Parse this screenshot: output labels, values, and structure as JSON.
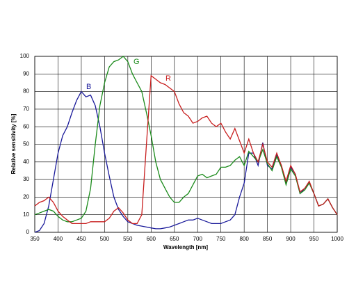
{
  "chart_data": {
    "type": "line",
    "x_label": "Wavelength [nm]",
    "y_label": "Relative sensitivity [%]",
    "x": [
      350,
      360,
      370,
      380,
      390,
      400,
      410,
      420,
      430,
      440,
      450,
      460,
      470,
      480,
      490,
      500,
      510,
      520,
      530,
      540,
      550,
      560,
      570,
      580,
      590,
      600,
      610,
      620,
      630,
      640,
      650,
      660,
      670,
      680,
      690,
      700,
      710,
      720,
      730,
      740,
      750,
      760,
      770,
      780,
      790,
      800,
      810,
      820,
      830,
      840,
      850,
      860,
      870,
      880,
      890,
      900,
      910,
      920,
      930,
      940,
      950,
      960,
      970,
      980,
      990,
      1000
    ],
    "series": [
      {
        "name": "B",
        "color": "#1a1a9a",
        "values": [
          0,
          1,
          5,
          15,
          30,
          45,
          55,
          60,
          68,
          75,
          80,
          77,
          78,
          72,
          60,
          45,
          32,
          20,
          13,
          9,
          6,
          5,
          4,
          3.5,
          3,
          2.5,
          2,
          2,
          2.5,
          3,
          4,
          5,
          6,
          7,
          7,
          8,
          7,
          6,
          5,
          5,
          5,
          6,
          7,
          10,
          20,
          28,
          45,
          45,
          38,
          51,
          38,
          36,
          44,
          38,
          28,
          37,
          33,
          22,
          25,
          28,
          22,
          15,
          16,
          19,
          14,
          10
        ]
      },
      {
        "name": "G",
        "color": "#1a8a1a",
        "values": [
          10,
          11,
          12,
          13,
          12,
          9,
          7,
          6,
          6,
          7,
          8,
          12,
          25,
          50,
          72,
          85,
          94,
          97,
          98,
          100,
          97,
          90,
          85,
          80,
          68,
          55,
          40,
          30,
          25,
          20,
          17,
          17,
          20,
          22,
          27,
          32,
          33,
          31,
          32,
          33,
          37,
          37,
          38,
          41,
          43,
          38,
          46,
          43,
          40,
          47,
          39,
          35,
          43,
          37,
          27,
          36,
          32,
          22,
          24,
          28,
          22,
          15,
          16,
          19,
          14,
          10
        ]
      },
      {
        "name": "R",
        "color": "#c81e1e",
        "values": [
          15,
          17,
          18,
          20,
          17,
          12,
          9,
          7,
          5,
          5,
          5,
          5,
          6,
          6,
          6,
          6,
          8,
          12,
          14,
          11,
          7,
          5,
          5,
          10,
          50,
          89,
          87,
          85,
          84,
          82,
          80,
          73,
          68,
          66,
          62,
          63,
          65,
          66,
          62,
          60,
          62,
          57,
          53,
          59,
          52,
          45,
          53,
          45,
          40,
          50,
          40,
          37,
          45,
          38,
          29,
          38,
          33,
          23,
          25,
          29,
          22,
          15,
          16,
          19,
          14,
          10
        ]
      }
    ],
    "xlim": [
      350,
      1000
    ],
    "xticks": [
      350,
      400,
      450,
      500,
      550,
      600,
      650,
      700,
      750,
      800,
      850,
      900,
      950,
      1000
    ],
    "ylim": [
      0,
      100
    ],
    "yticks": [
      0,
      10,
      20,
      30,
      40,
      50,
      60,
      70,
      80,
      90,
      100
    ],
    "grid": true
  }
}
